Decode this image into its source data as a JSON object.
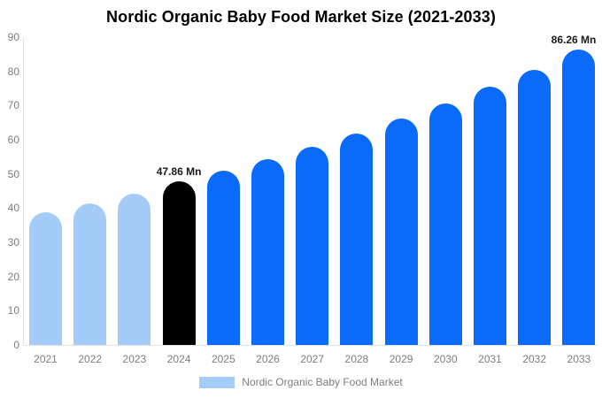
{
  "title": "Nordic Organic Baby Food Market Size (2021-2033)",
  "legend": {
    "label": "Nordic Organic Baby Food Market",
    "swatch_color": "#a3cdf8"
  },
  "colors": {
    "past_bar": "#a3cdf8",
    "current_bar": "#000000",
    "forecast_bar": "#0a6bfa",
    "axis_text": "#7d7d7d",
    "axis_line": "#e3e3e3",
    "data_label_text": "#1a1a1a"
  },
  "chart_data": {
    "type": "bar",
    "title": "Nordic Organic Baby Food Market Size (2021-2033)",
    "categories": [
      "2021",
      "2022",
      "2023",
      "2024",
      "2025",
      "2026",
      "2027",
      "2028",
      "2029",
      "2030",
      "2031",
      "2032",
      "2033"
    ],
    "values": [
      38.9,
      41.5,
      44.3,
      47.86,
      51.0,
      54.4,
      58.0,
      61.9,
      66.2,
      70.7,
      75.4,
      80.5,
      86.26
    ],
    "bar_colors": [
      "#a3cdf8",
      "#a3cdf8",
      "#a3cdf8",
      "#000000",
      "#0a6bfa",
      "#0a6bfa",
      "#0a6bfa",
      "#0a6bfa",
      "#0a6bfa",
      "#0a6bfa",
      "#0a6bfa",
      "#0a6bfa",
      "#0a6bfa"
    ],
    "data_labels": [
      {
        "index": 3,
        "text": "47.86 Mn"
      },
      {
        "index": 12,
        "text": "86.26 Mn"
      }
    ],
    "xlabel": "",
    "ylabel": "",
    "ylim": [
      0,
      90
    ],
    "yticks": [
      0,
      10,
      20,
      30,
      40,
      50,
      60,
      70,
      80,
      90
    ],
    "grid": false,
    "legend_position": "bottom",
    "legend_entries": [
      "Nordic Organic Baby Food Market"
    ]
  }
}
